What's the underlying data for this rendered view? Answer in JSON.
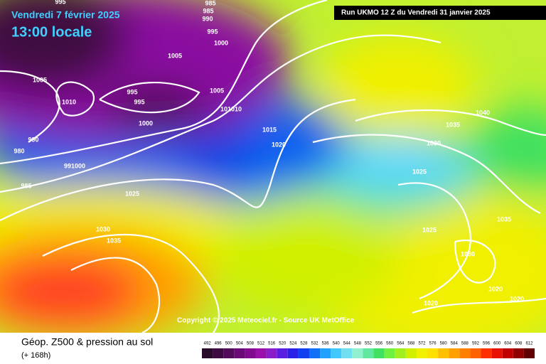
{
  "header": {
    "date": "Vendredi 7 février 2025",
    "time": "13:00 locale",
    "run": "Run UKMO 12 Z du Vendredi 31 janvier 2025"
  },
  "copyright": "Copyright © 2025 Meteociel.fr - Source UK MetOffice",
  "footer": {
    "title": "Géop. Z500 & pression au sol",
    "lead": "(+ 168h)"
  },
  "isobar_labels": [
    "995",
    "985",
    "985",
    "990",
    "995",
    "1000",
    "1005",
    "1005",
    "1010",
    "995",
    "995",
    "1000",
    "1005",
    "101010",
    "990",
    "980",
    "991000",
    "985",
    "1025",
    "1015",
    "1020",
    "1030",
    "1035",
    "1040",
    "1035",
    "1030",
    "1025",
    "1025",
    "1035",
    "1030",
    "1020",
    "1020",
    "1020"
  ],
  "scale": {
    "ticks": [
      492,
      496,
      500,
      504,
      508,
      512,
      516,
      520,
      524,
      528,
      532,
      536,
      540,
      544,
      548,
      552,
      556,
      560,
      564,
      568,
      572,
      576,
      580,
      584,
      588,
      592,
      596,
      600,
      604,
      608,
      612
    ],
    "colors": [
      "#2a0a2a",
      "#3c0a40",
      "#520a5a",
      "#6a0a76",
      "#820a90",
      "#9a10aa",
      "#8a1ec8",
      "#5a1ee0",
      "#2a20e8",
      "#1040f0",
      "#1070f8",
      "#20a0ff",
      "#40c8ff",
      "#70e0f0",
      "#90f0d0",
      "#60e8a0",
      "#40e060",
      "#70f040",
      "#a0f020",
      "#d0f000",
      "#f0f000",
      "#ffe000",
      "#ffc000",
      "#ffa000",
      "#ff8000",
      "#ff6000",
      "#ff3000",
      "#e81000",
      "#c00000",
      "#900000",
      "#600000"
    ]
  }
}
